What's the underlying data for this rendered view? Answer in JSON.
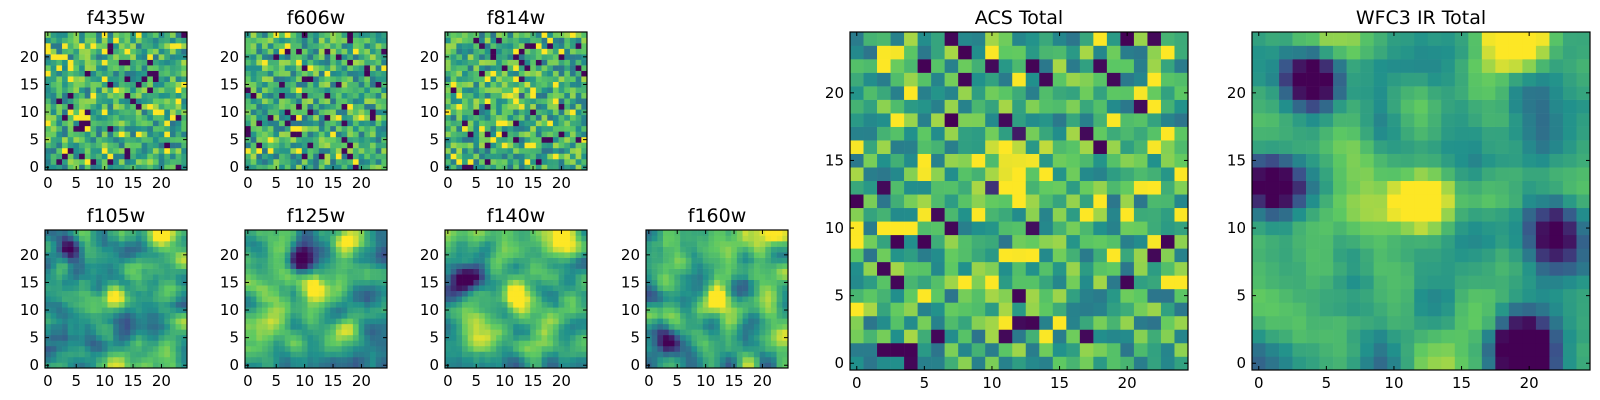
{
  "colormap": [
    "#440154",
    "#3b528b",
    "#21918c",
    "#5ec962",
    "#fde725"
  ],
  "chart_data": [
    {
      "type": "heatmap",
      "title": "f435w",
      "xlim": [
        0,
        24
      ],
      "ylim": [
        0,
        24
      ],
      "xticks": [
        0,
        5,
        10,
        15,
        20
      ],
      "yticks": [
        0,
        5,
        10,
        15,
        20
      ],
      "grid": false,
      "style": "noise",
      "seed": 11,
      "blobs": []
    },
    {
      "type": "heatmap",
      "title": "f606w",
      "xlim": [
        0,
        24
      ],
      "ylim": [
        0,
        24
      ],
      "xticks": [
        0,
        5,
        10,
        15,
        20
      ],
      "yticks": [
        0,
        5,
        10,
        15,
        20
      ],
      "grid": false,
      "style": "noise",
      "seed": 23,
      "blobs": []
    },
    {
      "type": "heatmap",
      "title": "f814w",
      "xlim": [
        0,
        24
      ],
      "ylim": [
        0,
        24
      ],
      "xticks": [
        0,
        5,
        10,
        15,
        20
      ],
      "yticks": [
        0,
        5,
        10,
        15,
        20
      ],
      "grid": false,
      "style": "noise",
      "seed": 37,
      "blobs": [
        [
          12,
          13,
          0.3
        ]
      ]
    },
    {
      "type": "heatmap",
      "title": "f105w",
      "xlim": [
        0,
        24
      ],
      "ylim": [
        0,
        24
      ],
      "xticks": [
        0,
        5,
        10,
        15,
        20
      ],
      "yticks": [
        0,
        5,
        10,
        15,
        20
      ],
      "grid": false,
      "style": "smooth",
      "seed": 41,
      "blobs": [
        [
          12,
          13,
          0.5
        ],
        [
          4,
          21,
          -0.7
        ],
        [
          20,
          24,
          0.4
        ]
      ]
    },
    {
      "type": "heatmap",
      "title": "f125w",
      "xlim": [
        0,
        24
      ],
      "ylim": [
        0,
        24
      ],
      "xticks": [
        0,
        5,
        10,
        15,
        20
      ],
      "yticks": [
        0,
        5,
        10,
        15,
        20
      ],
      "grid": false,
      "style": "smooth",
      "seed": 53,
      "blobs": [
        [
          12,
          13,
          0.4
        ],
        [
          17,
          23,
          0.6
        ],
        [
          9,
          19,
          -0.6
        ]
      ]
    },
    {
      "type": "heatmap",
      "title": "f140w",
      "xlim": [
        0,
        24
      ],
      "ylim": [
        0,
        24
      ],
      "xticks": [
        0,
        5,
        10,
        15,
        20
      ],
      "yticks": [
        0,
        5,
        10,
        15,
        20
      ],
      "grid": false,
      "style": "smooth",
      "seed": 67,
      "blobs": [
        [
          12,
          13,
          0.5
        ],
        [
          20,
          24,
          0.6
        ],
        [
          3,
          16,
          -0.6
        ]
      ]
    },
    {
      "type": "heatmap",
      "title": "f160w",
      "xlim": [
        0,
        24
      ],
      "ylim": [
        0,
        24
      ],
      "xticks": [
        0,
        5,
        10,
        15,
        20
      ],
      "yticks": [
        0,
        5,
        10,
        15,
        20
      ],
      "grid": false,
      "style": "smooth",
      "seed": 79,
      "blobs": [
        [
          12,
          12,
          0.6
        ],
        [
          21,
          24,
          0.4
        ],
        [
          3,
          4,
          -0.5
        ]
      ]
    },
    {
      "type": "heatmap",
      "title": "ACS Total",
      "xlim": [
        0,
        24
      ],
      "ylim": [
        0,
        24
      ],
      "xticks": [
        0,
        5,
        10,
        15,
        20
      ],
      "yticks": [
        0,
        5,
        10,
        15,
        20
      ],
      "grid": false,
      "style": "noise",
      "seed": 97,
      "blobs": [
        [
          12,
          14,
          0.35
        ]
      ]
    },
    {
      "type": "heatmap",
      "title": "WFC3 IR Total",
      "xlim": [
        0,
        24
      ],
      "ylim": [
        0,
        24
      ],
      "xticks": [
        0,
        5,
        10,
        15,
        20
      ],
      "yticks": [
        0,
        5,
        10,
        15,
        20
      ],
      "grid": false,
      "style": "smooth",
      "seed": 131,
      "blobs": [
        [
          12,
          12,
          0.8
        ],
        [
          19,
          24,
          0.8
        ],
        [
          4,
          21,
          -0.9
        ],
        [
          1,
          13,
          -0.9
        ],
        [
          19,
          1,
          -0.9
        ],
        [
          22,
          10,
          -0.7
        ]
      ]
    }
  ]
}
